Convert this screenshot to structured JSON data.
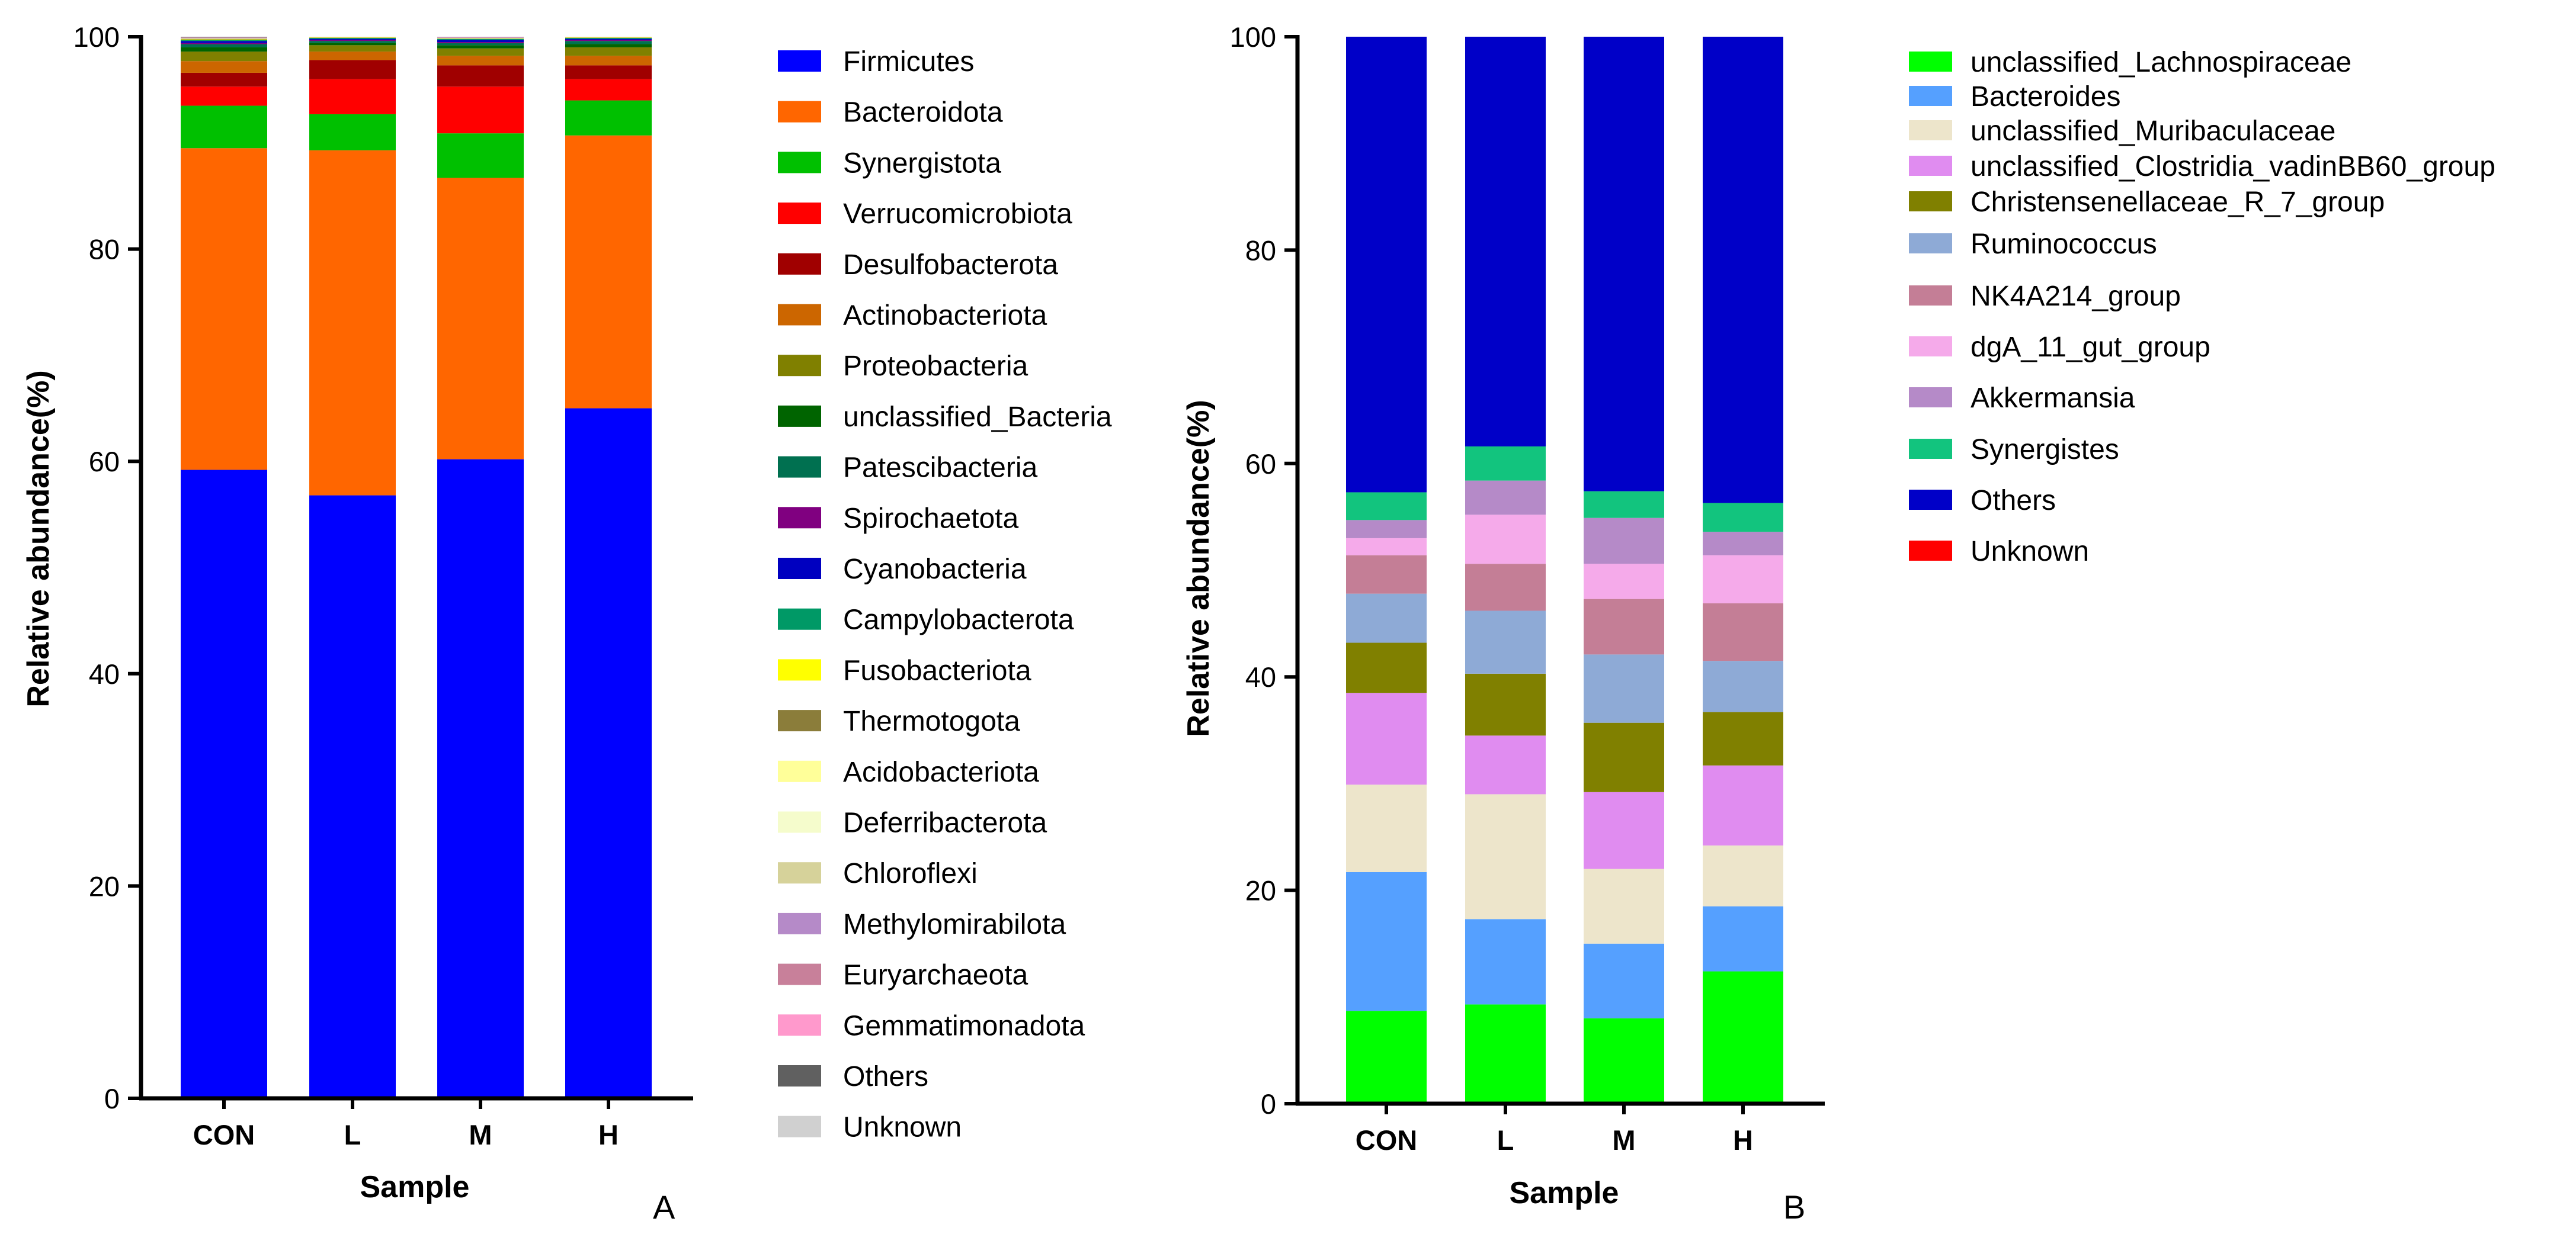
{
  "figure": {
    "panel_a_label": "A",
    "panel_b_label": "B"
  },
  "chart_data": [
    {
      "type": "bar",
      "stacked": true,
      "panel": "A",
      "title": "",
      "xlabel": "Sample",
      "ylabel": "Relative abundance(%)",
      "ylim": [
        0,
        100
      ],
      "yticks": [
        0,
        20,
        40,
        60,
        80,
        100
      ],
      "categories": [
        "CON",
        "L",
        "M",
        "H"
      ],
      "legend_position": "right",
      "series": [
        {
          "name": "Firmicutes",
          "color": "#0000FF",
          "values": [
            59.2,
            56.8,
            60.2,
            65.0
          ]
        },
        {
          "name": "Bacteroidota",
          "color": "#FF6600",
          "values": [
            30.3,
            32.5,
            26.5,
            25.7
          ]
        },
        {
          "name": "Synergistota",
          "color": "#00C000",
          "values": [
            4.0,
            3.4,
            4.2,
            3.3
          ]
        },
        {
          "name": "Verrucomicrobiota",
          "color": "#FF0000",
          "values": [
            1.8,
            3.3,
            4.4,
            2.0
          ]
        },
        {
          "name": "Desulfobacterota",
          "color": "#A00000",
          "values": [
            1.3,
            1.8,
            2.0,
            1.3
          ]
        },
        {
          "name": "Actinobacteriota",
          "color": "#CC6600",
          "values": [
            1.1,
            0.8,
            0.9,
            0.9
          ]
        },
        {
          "name": "Proteobacteria",
          "color": "#808000",
          "values": [
            0.9,
            0.6,
            0.7,
            0.8
          ]
        },
        {
          "name": "unclassified_Bacteria",
          "color": "#006400",
          "values": [
            0.4,
            0.2,
            0.3,
            0.3
          ]
        },
        {
          "name": "Patescibacteria",
          "color": "#007050",
          "values": [
            0.3,
            0.2,
            0.2,
            0.3
          ]
        },
        {
          "name": "Spirochaetota",
          "color": "#800080",
          "values": [
            0.1,
            0.1,
            0.1,
            0.1
          ]
        },
        {
          "name": "Cyanobacteria",
          "color": "#0000C0",
          "values": [
            0.2,
            0.1,
            0.2,
            0.1
          ]
        },
        {
          "name": "Campylobacterota",
          "color": "#009966",
          "values": [
            0.1,
            0.1,
            0.1,
            0.1
          ]
        },
        {
          "name": "Fusobacteriota",
          "color": "#FFFF00",
          "values": [
            0.05,
            0.02,
            0.02,
            0.02
          ]
        },
        {
          "name": "Thermotogota",
          "color": "#8B7D3A",
          "values": [
            0.05,
            0.02,
            0.02,
            0.02
          ]
        },
        {
          "name": "Acidobacteriota",
          "color": "#FFFF99",
          "values": [
            0.02,
            0.02,
            0.02,
            0.02
          ]
        },
        {
          "name": "Deferribacterota",
          "color": "#F5FCCC",
          "values": [
            0.02,
            0.02,
            0.02,
            0.02
          ]
        },
        {
          "name": "Chloroflexi",
          "color": "#D6D29A",
          "values": [
            0.02,
            0.02,
            0.02,
            0.02
          ]
        },
        {
          "name": "Methylomirabilota",
          "color": "#B58AC8",
          "values": [
            0.02,
            0.02,
            0.02,
            0.02
          ]
        },
        {
          "name": "Euryarchaeota",
          "color": "#C8809A",
          "values": [
            0.02,
            0.02,
            0.02,
            0.02
          ]
        },
        {
          "name": "Gemmatimonadota",
          "color": "#FF99CC",
          "values": [
            0.02,
            0.02,
            0.02,
            0.02
          ]
        },
        {
          "name": "Others",
          "color": "#606060",
          "values": [
            0.1,
            0.1,
            0.1,
            0.1
          ]
        },
        {
          "name": "Unknown",
          "color": "#D0D0D0",
          "values": [
            0.05,
            0.05,
            0.05,
            0.05
          ]
        }
      ]
    },
    {
      "type": "bar",
      "stacked": true,
      "panel": "B",
      "title": "",
      "xlabel": "Sample",
      "ylabel": "Relative abundance(%)",
      "ylim": [
        0,
        100
      ],
      "yticks": [
        0,
        20,
        40,
        60,
        80,
        100
      ],
      "categories": [
        "CON",
        "L",
        "M",
        "H"
      ],
      "legend_position": "right",
      "series": [
        {
          "name": "unclassified_Lachnospiraceae",
          "color": "#00FF00",
          "values": [
            8.7,
            9.3,
            8.0,
            12.4
          ]
        },
        {
          "name": "Bacteroides",
          "color": "#55A0FF",
          "values": [
            13.0,
            8.0,
            7.0,
            6.1
          ]
        },
        {
          "name": "unclassified_Muribaculaceae",
          "color": "#EDE5CB",
          "values": [
            8.2,
            11.7,
            7.0,
            5.7
          ]
        },
        {
          "name": "unclassified_Clostridia_vadinBB60_group",
          "color": "#E08CF0",
          "values": [
            8.6,
            5.5,
            7.2,
            7.5
          ]
        },
        {
          "name": "Christensenellaceae_R_7_group",
          "color": "#808000",
          "values": [
            4.7,
            5.8,
            6.5,
            5.0
          ]
        },
        {
          "name": "Ruminococcus",
          "color": "#8EAAD6",
          "values": [
            4.6,
            5.9,
            6.4,
            4.8
          ]
        },
        {
          "name": "NK4A214_group",
          "color": "#C47E96",
          "values": [
            3.6,
            4.4,
            5.2,
            5.4
          ]
        },
        {
          "name": "dgA_11_gut_group",
          "color": "#F5AAEA",
          "values": [
            1.6,
            4.6,
            3.3,
            4.5
          ]
        },
        {
          "name": "Akkermansia",
          "color": "#B58AC8",
          "values": [
            1.7,
            3.2,
            4.3,
            2.2
          ]
        },
        {
          "name": "Synergistes",
          "color": "#12C47E",
          "values": [
            2.6,
            3.2,
            2.5,
            2.7
          ]
        },
        {
          "name": "Others",
          "color": "#0000C8",
          "values": [
            42.7,
            38.4,
            42.6,
            43.7
          ]
        },
        {
          "name": "Unknown",
          "color": "#FF0000",
          "values": [
            0,
            0,
            0,
            0
          ]
        }
      ]
    }
  ]
}
